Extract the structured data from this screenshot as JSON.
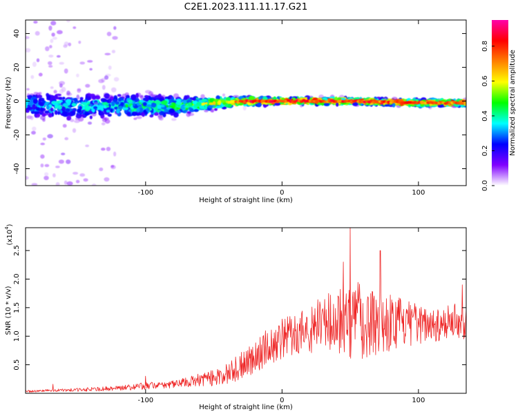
{
  "figure": {
    "title": "C2E1.2023.111.11.17.G21"
  },
  "chart_data": [
    {
      "type": "heatmap",
      "id": "spectrogram",
      "xlabel": "Height of straight line (km)",
      "ylabel": "Frequency (Hz)",
      "xlim": [
        -188,
        135
      ],
      "ylim": [
        -50,
        48
      ],
      "xticks": [
        -100,
        0,
        100
      ],
      "xtick_labels": [
        "-100",
        "0",
        "100"
      ],
      "yticks": [
        -40,
        -20,
        0,
        20,
        40
      ],
      "ytick_labels": [
        "-40",
        "-20",
        "0",
        "20",
        "40"
      ],
      "grid": false,
      "trend": {
        "center_frequency_hz": [
          [
            -188,
            -2
          ],
          [
            -140,
            -3
          ],
          [
            -100,
            -3
          ],
          [
            -75,
            -3
          ],
          [
            -50,
            -1
          ],
          [
            -25,
            0
          ],
          [
            0,
            0
          ],
          [
            50,
            0
          ],
          [
            100,
            -1
          ],
          [
            135,
            -1
          ]
        ],
        "spread_hz": [
          [
            -188,
            7
          ],
          [
            -120,
            6
          ],
          [
            -80,
            5
          ],
          [
            -50,
            3
          ],
          [
            -25,
            2
          ],
          [
            0,
            1.5
          ],
          [
            135,
            1.5
          ]
        ],
        "peak_amplitude": [
          [
            -188,
            0.35
          ],
          [
            -120,
            0.45
          ],
          [
            -80,
            0.5
          ],
          [
            -40,
            0.7
          ],
          [
            -25,
            0.9
          ],
          [
            0,
            0.9
          ],
          [
            135,
            0.85
          ]
        ]
      },
      "colorbar": {
        "label": "Normalized spectral amplitude",
        "range": [
          0.0,
          0.95
        ],
        "ticks": [
          0.0,
          0.2,
          0.4,
          0.6,
          0.8
        ],
        "tick_labels": [
          "0.0",
          "0.2",
          "0.4",
          "0.6",
          "0.8"
        ],
        "colormap": [
          "#ffffff",
          "#8000ff",
          "#0000ff",
          "#00ffff",
          "#00ff00",
          "#ffff00",
          "#ff8000",
          "#ff0000",
          "#ff00aa"
        ]
      }
    },
    {
      "type": "line",
      "id": "snr",
      "xlabel": "Height of straight line (km)",
      "ylabel": "SNR (10 * v/v)",
      "yscale_label": "(x10",
      "yscale_exponent": "4",
      "yscale_close": ")",
      "xlim": [
        -188,
        135
      ],
      "ylim": [
        0,
        2.9
      ],
      "xticks": [
        -100,
        0,
        100
      ],
      "xtick_labels": [
        "-100",
        "0",
        "100"
      ],
      "yticks": [
        0.5,
        1.0,
        1.5,
        2.0,
        2.5
      ],
      "ytick_labels": [
        "0.5",
        "1.0",
        "1.5",
        "2.0",
        "2.5"
      ],
      "color": "#ee2222",
      "grid": false,
      "series": [
        {
          "x": [
            -188,
            -170,
            -150,
            -130,
            -110,
            -100,
            -90,
            -80,
            -70,
            -60,
            -50,
            -40,
            -30,
            -20,
            -10,
            0,
            10,
            20,
            30,
            40,
            50,
            60,
            70,
            80,
            90,
            100,
            110,
            120,
            135
          ],
          "y": [
            0.03,
            0.05,
            0.06,
            0.08,
            0.11,
            0.13,
            0.14,
            0.16,
            0.19,
            0.23,
            0.28,
            0.34,
            0.48,
            0.65,
            0.82,
            0.95,
            1.05,
            1.12,
            1.2,
            1.28,
            1.3,
            1.28,
            1.26,
            1.25,
            1.22,
            1.2,
            1.22,
            1.25,
            1.25
          ],
          "amplitude": [
            0.02,
            0.02,
            0.03,
            0.04,
            0.05,
            0.06,
            0.06,
            0.07,
            0.09,
            0.12,
            0.15,
            0.18,
            0.24,
            0.3,
            0.33,
            0.35,
            0.38,
            0.42,
            0.55,
            0.65,
            0.72,
            0.68,
            0.6,
            0.5,
            0.42,
            0.35,
            0.32,
            0.32,
            0.32
          ]
        }
      ],
      "peaks": [
        [
          -168,
          0.16
        ],
        [
          -100,
          0.3
        ],
        [
          -25,
          0.75
        ],
        [
          45,
          2.3
        ],
        [
          50,
          2.92
        ],
        [
          72,
          2.5
        ],
        [
          132,
          1.9
        ]
      ]
    }
  ]
}
